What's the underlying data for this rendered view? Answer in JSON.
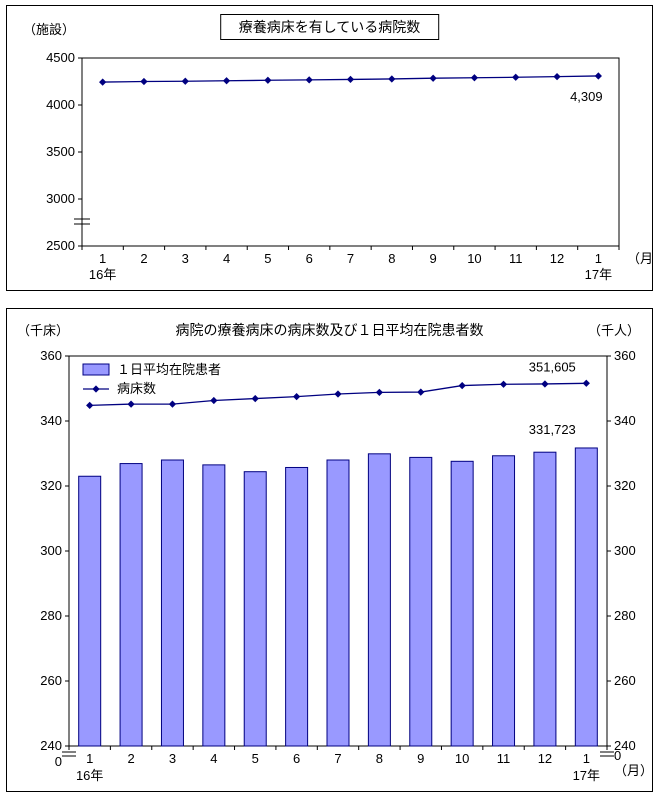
{
  "chart_data": [
    {
      "type": "line",
      "title": "療養病床を有している病院数",
      "y_unit_label": "（施設）",
      "x_unit_label": "（月）",
      "x_year_labels": {
        "start": "16年",
        "end": "17年"
      },
      "categories": [
        "1",
        "2",
        "3",
        "4",
        "5",
        "6",
        "7",
        "8",
        "9",
        "10",
        "11",
        "12",
        "1"
      ],
      "values": [
        4244,
        4250,
        4253,
        4258,
        4263,
        4267,
        4272,
        4277,
        4285,
        4290,
        4295,
        4302,
        4309
      ],
      "ylim": [
        2500,
        4500
      ],
      "yticks": [
        4500,
        4000,
        3500,
        3000,
        2500
      ],
      "axis_break": true,
      "line_color": "#000080",
      "annotation": {
        "text": "4,309",
        "index": 12
      }
    },
    {
      "type": "bar+line",
      "title": "病院の療養病床の病床数及び１日平均在院患者数",
      "left_unit_label": "（千床）",
      "right_unit_label": "（千人）",
      "x_unit_label": "（月）",
      "x_year_labels": {
        "start": "16年",
        "end": "17年"
      },
      "categories": [
        "1",
        "2",
        "3",
        "4",
        "5",
        "6",
        "7",
        "8",
        "9",
        "10",
        "11",
        "12",
        "1"
      ],
      "series": [
        {
          "name": "１日平均在院患者",
          "type": "bar",
          "axis": "right",
          "values": [
            323.0,
            326.9,
            328.0,
            326.5,
            324.4,
            325.7,
            328.0,
            329.9,
            328.8,
            327.6,
            329.3,
            330.4,
            331.7
          ],
          "fill": "#9999FF",
          "stroke": "#000080",
          "annotation": {
            "text": "331,723",
            "index": 12
          }
        },
        {
          "name": "病床数",
          "type": "line",
          "axis": "left",
          "values": [
            344.8,
            345.2,
            345.2,
            346.3,
            346.9,
            347.5,
            348.3,
            348.8,
            348.9,
            350.9,
            351.3,
            351.4,
            351.6
          ],
          "color": "#000080",
          "annotation": {
            "text": "351,605",
            "index": 12
          }
        }
      ],
      "ylim": [
        240,
        360
      ],
      "yticks": [
        360,
        340,
        320,
        300,
        280,
        260,
        240
      ],
      "zero_label": "0",
      "axis_break": true,
      "legend_position": "top-left"
    }
  ]
}
